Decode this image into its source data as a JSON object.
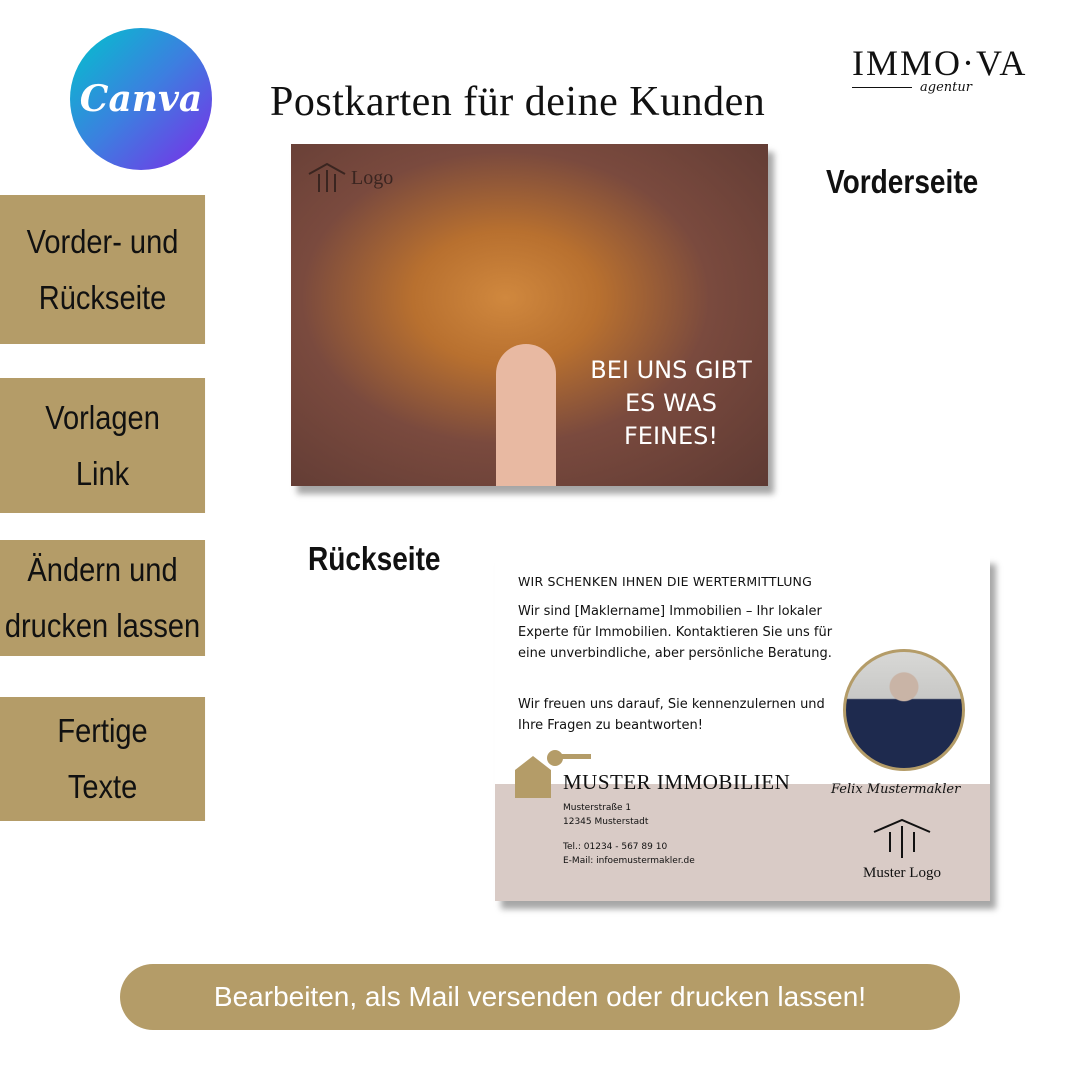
{
  "canva_logo": "Canva",
  "title": "Postkarten für deine Kunden",
  "brand": {
    "name": "IMMO·VA",
    "sub": "agentur"
  },
  "sidebar": {
    "items": [
      {
        "label_1": "Vorder- und",
        "label_2": "Rückseite"
      },
      {
        "label_1": "Vorlagen",
        "label_2": "Link"
      },
      {
        "label_1": "Ändern und",
        "label_2": "drucken lassen"
      },
      {
        "label_1": "Fertige",
        "label_2": "Texte"
      }
    ]
  },
  "front": {
    "label": "Vorderseite",
    "logo": "Logo",
    "headline_1": "BEI UNS GIBT",
    "headline_2": "ES WAS",
    "headline_3": "FEINES!"
  },
  "back": {
    "label": "Rückseite",
    "heading": "WIR SCHENKEN IHNEN DIE WERTERMITTLUNG",
    "para_1": "Wir sind [Maklername] Immobilien – Ihr lokaler Experte für Immobilien. Kontaktieren Sie uns für eine unverbindliche, aber persönliche Beratung.",
    "para_2": "Wir freuen uns darauf, Sie kennenzulernen und Ihre Fragen zu beantworten!",
    "company": "MUSTER IMMOBILIEN",
    "street": "Musterstraße 1",
    "city": "12345 Musterstadt",
    "phone": "Tel.: 01234 - 567 89 10",
    "email": "E-Mail: infoemustermakler.de",
    "signature": "Felix Mustermakler",
    "logo": "Muster Logo"
  },
  "cta": "Bearbeiten, als Mail versenden oder drucken lassen!",
  "colors": {
    "gold": "#b49c68",
    "band": "#d9cbc6"
  }
}
